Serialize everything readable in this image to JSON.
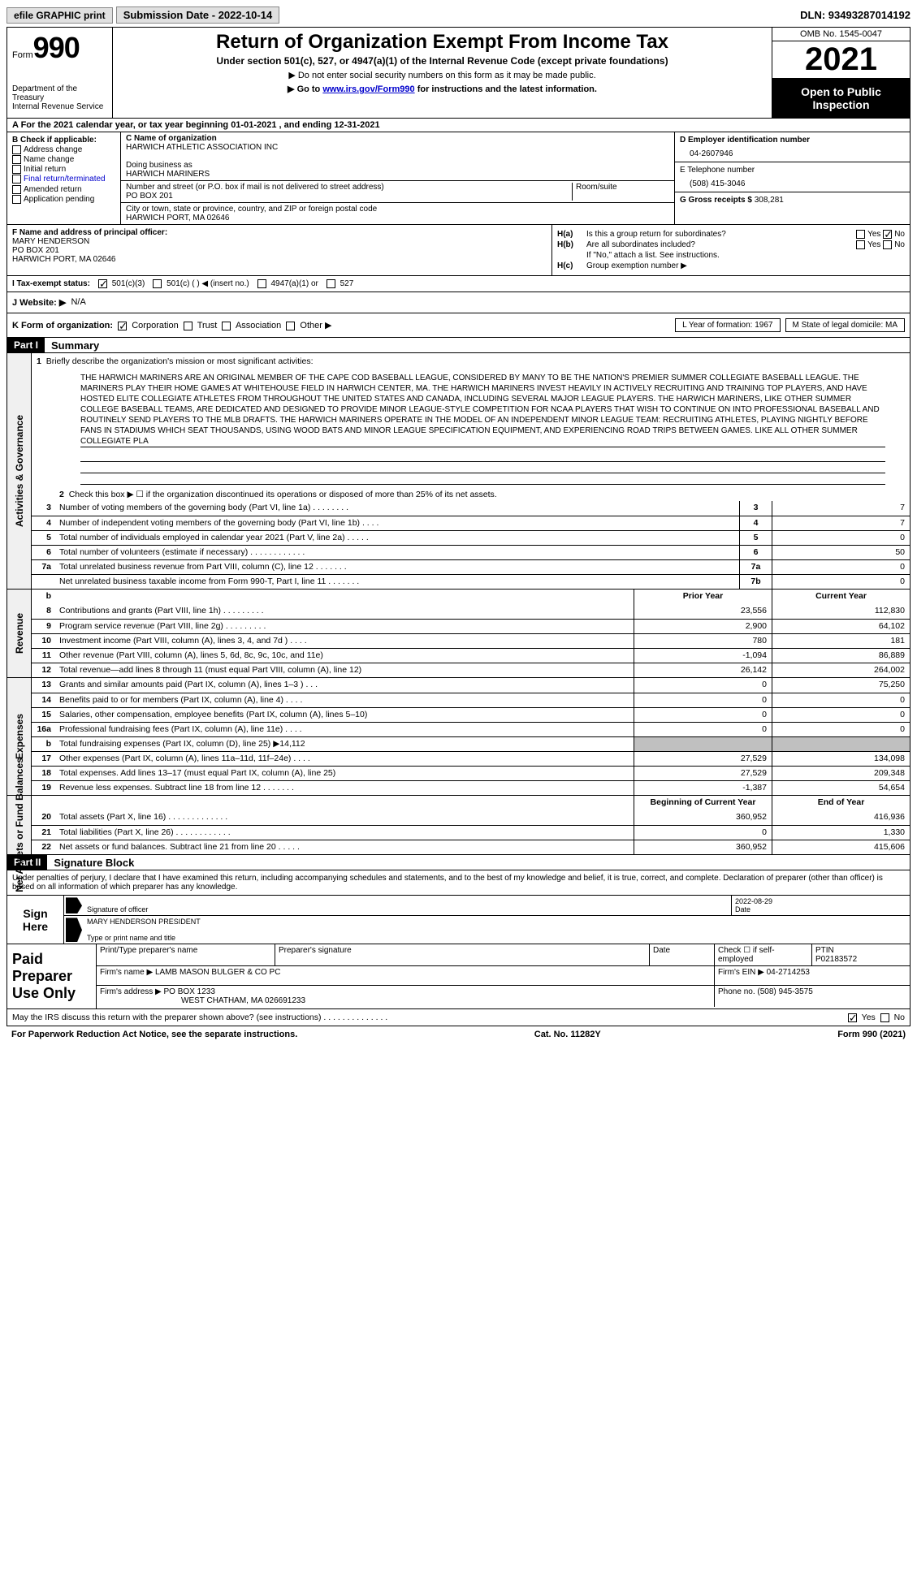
{
  "topbar": {
    "efile": "efile GRAPHIC print",
    "submission": "Submission Date - 2022-10-14",
    "dln": "DLN: 93493287014192"
  },
  "header": {
    "form_label": "Form",
    "form_num": "990",
    "dept": "Department of the Treasury\nInternal Revenue Service",
    "title": "Return of Organization Exempt From Income Tax",
    "sub1": "Under section 501(c), 527, or 4947(a)(1) of the Internal Revenue Code (except private foundations)",
    "sub2": "▶ Do not enter social security numbers on this form as it may be made public.",
    "sub3": "▶ Go to www.irs.gov/Form990 for instructions and the latest information.",
    "link": "www.irs.gov/Form990",
    "omb": "OMB No. 1545-0047",
    "year": "2021",
    "inspect": "Open to Public Inspection"
  },
  "row_a": "A For the 2021 calendar year, or tax year beginning 01-01-2021   , and ending 12-31-2021",
  "section_b": {
    "hdr": "B Check if applicable:",
    "items": [
      "Address change",
      "Name change",
      "Initial return",
      "Final return/terminated",
      "Amended return",
      "Application pending"
    ]
  },
  "section_c": {
    "name_lbl": "C Name of organization",
    "name": "HARWICH ATHLETIC ASSOCIATION INC",
    "dba_lbl": "Doing business as",
    "dba": "HARWICH MARINERS",
    "street_lbl": "Number and street (or P.O. box if mail is not delivered to street address)",
    "street": "PO BOX 201",
    "room_lbl": "Room/suite",
    "city_lbl": "City or town, state or province, country, and ZIP or foreign postal code",
    "city": "HARWICH PORT, MA  02646"
  },
  "section_d": {
    "lbl": "D Employer identification number",
    "val": "04-2607946"
  },
  "section_e": {
    "lbl": "E Telephone number",
    "val": "(508) 415-3046"
  },
  "section_g": {
    "lbl": "G Gross receipts $",
    "val": "308,281"
  },
  "section_f": {
    "lbl": "F  Name and address of principal officer:",
    "name": "MARY HENDERSON",
    "addr1": "PO BOX 201",
    "addr2": "HARWICH PORT, MA  02646"
  },
  "section_h": {
    "ha_lbl": "H(a)",
    "ha_txt": "Is this a group return for subordinates?",
    "hb_lbl": "H(b)",
    "hb_txt": "Are all subordinates included?",
    "hb_note": "If \"No,\" attach a list. See instructions.",
    "hc_lbl": "H(c)",
    "hc_txt": "Group exemption number ▶",
    "yes": "Yes",
    "no": "No"
  },
  "row_i": {
    "lbl": "I   Tax-exempt status:",
    "o1": "501(c)(3)",
    "o2": "501(c) (  ) ◀ (insert no.)",
    "o3": "4947(a)(1) or",
    "o4": "527"
  },
  "row_j": {
    "lbl": "J   Website: ▶",
    "val": "N/A"
  },
  "row_k": {
    "lbl": "K Form of organization:",
    "o1": "Corporation",
    "o2": "Trust",
    "o3": "Association",
    "o4": "Other ▶",
    "l_lbl": "L Year of formation: 1967",
    "m_lbl": "M State of legal domicile: MA"
  },
  "part1": {
    "hdr": "Part I",
    "title": "Summary",
    "l1_lbl": "1",
    "l1_txt": "Briefly describe the organization's mission or most significant activities:",
    "mission": "THE HARWICH MARINERS ARE AN ORIGINAL MEMBER OF THE CAPE COD BASEBALL LEAGUE, CONSIDERED BY MANY TO BE THE NATION'S PREMIER SUMMER COLLEGIATE BASEBALL LEAGUE. THE MARINERS PLAY THEIR HOME GAMES AT WHITEHOUSE FIELD IN HARWICH CENTER, MA. THE HARWICH MARINERS INVEST HEAVILY IN ACTIVELY RECRUITING AND TRAINING TOP PLAYERS, AND HAVE HOSTED ELITE COLLEGIATE ATHLETES FROM THROUGHOUT THE UNITED STATES AND CANADA, INCLUDING SEVERAL MAJOR LEAGUE PLAYERS. THE HARWICH MARINERS, LIKE OTHER SUMMER COLLEGE BASEBALL TEAMS, ARE DEDICATED AND DESIGNED TO PROVIDE MINOR LEAGUE-STYLE COMPETITION FOR NCAA PLAYERS THAT WISH TO CONTINUE ON INTO PROFESSIONAL BASEBALL AND ROUTINELY SEND PLAYERS TO THE MLB DRAFTS. THE HARWICH MARINERS OPERATE IN THE MODEL OF AN INDEPENDENT MINOR LEAGUE TEAM: RECRUITING ATHLETES, PLAYING NIGHTLY BEFORE FANS IN STADIUMS WHICH SEAT THOUSANDS, USING WOOD BATS AND MINOR LEAGUE SPECIFICATION EQUIPMENT, AND EXPERIENCING ROAD TRIPS BETWEEN GAMES. LIKE ALL OTHER SUMMER COLLEGIATE PLA",
    "l2": "Check this box ▶ ☐ if the organization discontinued its operations or disposed of more than 25% of its net assets.",
    "rows_gov": [
      {
        "n": "3",
        "t": "Number of voting members of the governing body (Part VI, line 1a)  .   .   .   .   .   .   .   .",
        "b": "3",
        "v": "7"
      },
      {
        "n": "4",
        "t": "Number of independent voting members of the governing body (Part VI, line 1b)   .   .   .   .",
        "b": "4",
        "v": "7"
      },
      {
        "n": "5",
        "t": "Total number of individuals employed in calendar year 2021 (Part V, line 2a)   .   .   .   .   .",
        "b": "5",
        "v": "0"
      },
      {
        "n": "6",
        "t": "Total number of volunteers (estimate if necessary)  .   .   .   .   .   .   .   .   .   .   .   .",
        "b": "6",
        "v": "50"
      },
      {
        "n": "7a",
        "t": "Total unrelated business revenue from Part VIII, column (C), line 12   .   .   .   .   .   .   .",
        "b": "7a",
        "v": "0"
      },
      {
        "n": "",
        "t": "Net unrelated business taxable income from Form 990-T, Part I, line 11  .   .   .   .   .   .   .",
        "b": "7b",
        "v": "0"
      }
    ],
    "col_hdrs": {
      "b": "b",
      "prior": "Prior Year",
      "current": "Current Year"
    },
    "rows_rev": [
      {
        "n": "8",
        "t": "Contributions and grants (Part VIII, line 1h)  .   .   .   .   .   .   .   .   .",
        "p": "23,556",
        "c": "112,830"
      },
      {
        "n": "9",
        "t": "Program service revenue (Part VIII, line 2g)   .   .   .   .   .   .   .   .   .",
        "p": "2,900",
        "c": "64,102"
      },
      {
        "n": "10",
        "t": "Investment income (Part VIII, column (A), lines 3, 4, and 7d )   .   .   .   .",
        "p": "780",
        "c": "181"
      },
      {
        "n": "11",
        "t": "Other revenue (Part VIII, column (A), lines 5, 6d, 8c, 9c, 10c, and 11e)",
        "p": "-1,094",
        "c": "86,889"
      },
      {
        "n": "12",
        "t": "Total revenue—add lines 8 through 11 (must equal Part VIII, column (A), line 12)",
        "p": "26,142",
        "c": "264,002"
      }
    ],
    "rows_exp": [
      {
        "n": "13",
        "t": "Grants and similar amounts paid (Part IX, column (A), lines 1–3 )  .   .   .",
        "p": "0",
        "c": "75,250"
      },
      {
        "n": "14",
        "t": "Benefits paid to or for members (Part IX, column (A), line 4)  .   .   .   .",
        "p": "0",
        "c": "0"
      },
      {
        "n": "15",
        "t": "Salaries, other compensation, employee benefits (Part IX, column (A), lines 5–10)",
        "p": "0",
        "c": "0"
      },
      {
        "n": "16a",
        "t": "Professional fundraising fees (Part IX, column (A), line 11e)  .   .   .   .",
        "p": "0",
        "c": "0"
      },
      {
        "n": "b",
        "t": "Total fundraising expenses (Part IX, column (D), line 25) ▶14,112",
        "p": "",
        "c": "",
        "shaded": true
      },
      {
        "n": "17",
        "t": "Other expenses (Part IX, column (A), lines 11a–11d, 11f–24e)  .   .   .   .",
        "p": "27,529",
        "c": "134,098"
      },
      {
        "n": "18",
        "t": "Total expenses. Add lines 13–17 (must equal Part IX, column (A), line 25)",
        "p": "27,529",
        "c": "209,348"
      },
      {
        "n": "19",
        "t": "Revenue less expenses. Subtract line 18 from line 12 .   .   .   .   .   .   .",
        "p": "-1,387",
        "c": "54,654"
      }
    ],
    "net_hdrs": {
      "begin": "Beginning of Current Year",
      "end": "End of Year"
    },
    "rows_net": [
      {
        "n": "20",
        "t": "Total assets (Part X, line 16)  .   .   .   .   .   .   .   .   .   .   .   .   .",
        "p": "360,952",
        "c": "416,936"
      },
      {
        "n": "21",
        "t": "Total liabilities (Part X, line 26)  .   .   .   .   .   .   .   .   .   .   .   .",
        "p": "0",
        "c": "1,330"
      },
      {
        "n": "22",
        "t": "Net assets or fund balances. Subtract line 21 from line 20 .   .   .   .   .",
        "p": "360,952",
        "c": "415,606"
      }
    ],
    "vtab_gov": "Activities & Governance",
    "vtab_rev": "Revenue",
    "vtab_exp": "Expenses",
    "vtab_net": "Net Assets or Fund Balances"
  },
  "part2": {
    "hdr": "Part II",
    "title": "Signature Block",
    "decl": "Under penalties of perjury, I declare that I have examined this return, including accompanying schedules and statements, and to the best of my knowledge and belief, it is true, correct, and complete. Declaration of preparer (other than officer) is based on all information of which preparer has any knowledge.",
    "sign_here": "Sign Here",
    "sig_officer": "Signature of officer",
    "date_lbl": "Date",
    "date_val": "2022-08-29",
    "name_title": "MARY HENDERSON  PRESIDENT",
    "name_title_lbl": "Type or print name and title",
    "paid": "Paid Preparer Use Only",
    "print_name_lbl": "Print/Type preparer's name",
    "prep_sig_lbl": "Preparer's signature",
    "prep_date_lbl": "Date",
    "self_emp": "Check ☐ if self-employed",
    "ptin_lbl": "PTIN",
    "ptin": "P02183572",
    "firm_name_lbl": "Firm's name    ▶",
    "firm_name": "LAMB MASON BULGER & CO PC",
    "firm_ein_lbl": "Firm's EIN ▶",
    "firm_ein": "04-2714253",
    "firm_addr_lbl": "Firm's address ▶",
    "firm_addr": "PO BOX 1233",
    "firm_addr2": "WEST CHATHAM, MA  026691233",
    "phone_lbl": "Phone no.",
    "phone": "(508) 945-3575",
    "discuss": "May the IRS discuss this return with the preparer shown above? (see instructions)  .   .   .   .   .   .   .   .   .   .   .   .   .   .",
    "yes": "Yes",
    "no": "No"
  },
  "footer": {
    "left": "For Paperwork Reduction Act Notice, see the separate instructions.",
    "mid": "Cat. No. 11282Y",
    "right": "Form 990 (2021)"
  }
}
